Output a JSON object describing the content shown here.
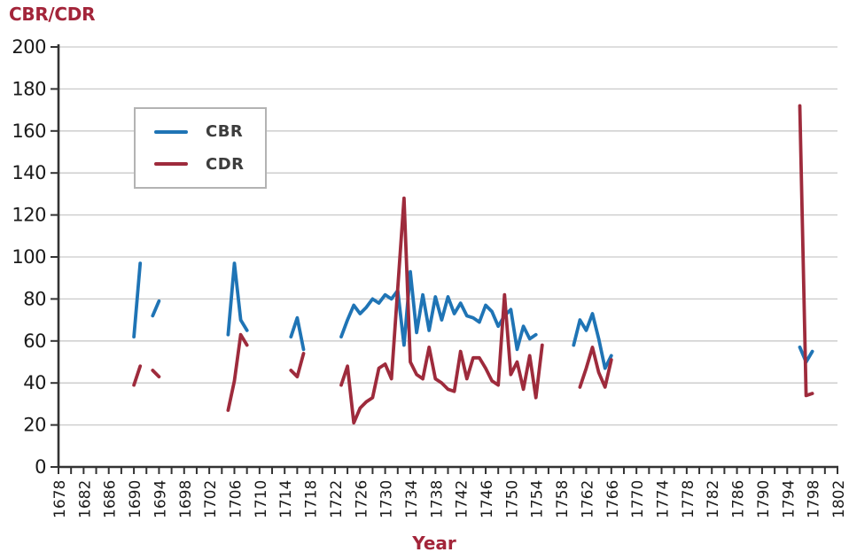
{
  "chart_data": {
    "type": "line",
    "title": "CBR/CDR",
    "xlabel": "Year",
    "grid": "horizontal-only",
    "legend_position": "upper-left-inside",
    "x_axis": {
      "min": 1678,
      "max": 1802,
      "tick_step": 2,
      "label_step": 4,
      "tick_labels": [
        1678,
        1682,
        1686,
        1690,
        1694,
        1698,
        1702,
        1706,
        1710,
        1714,
        1718,
        1722,
        1726,
        1730,
        1734,
        1738,
        1742,
        1746,
        1750,
        1754,
        1758,
        1762,
        1766,
        1770,
        1774,
        1778,
        1782,
        1786,
        1790,
        1794,
        1798,
        1802
      ]
    },
    "y_axis": {
      "min": 0,
      "max": 200,
      "tick_step": 20,
      "tick_labels": [
        0,
        20,
        40,
        60,
        80,
        100,
        120,
        140,
        160,
        180,
        200
      ]
    },
    "colors": {
      "cbr": "#1f74b5",
      "cdr": "#9e2b3c",
      "title_text": "#a3253a",
      "axis": "#333333",
      "grid": "#c9c9c9",
      "tick_text": "#1a1a1a",
      "legend_text": "#3d3d3d",
      "legend_border": "#b3b3b3"
    },
    "series": [
      {
        "name": "CBR",
        "color": "#1f74b5",
        "segments": [
          [
            [
              1690,
              62
            ],
            [
              1691,
              97
            ]
          ],
          [
            [
              1693,
              72
            ],
            [
              1694,
              79
            ]
          ],
          [
            [
              1705,
              63
            ],
            [
              1706,
              97
            ],
            [
              1707,
              70
            ],
            [
              1708,
              65
            ]
          ],
          [
            [
              1715,
              62
            ],
            [
              1716,
              71
            ],
            [
              1717,
              56
            ]
          ],
          [
            [
              1723,
              62
            ],
            [
              1724,
              70
            ],
            [
              1725,
              77
            ],
            [
              1726,
              73
            ],
            [
              1727,
              76
            ],
            [
              1728,
              80
            ],
            [
              1729,
              78
            ],
            [
              1730,
              82
            ],
            [
              1731,
              80
            ],
            [
              1732,
              84
            ],
            [
              1733,
              58
            ],
            [
              1734,
              93
            ],
            [
              1735,
              64
            ],
            [
              1736,
              82
            ],
            [
              1737,
              65
            ],
            [
              1738,
              81
            ],
            [
              1739,
              70
            ],
            [
              1740,
              81
            ],
            [
              1741,
              73
            ],
            [
              1742,
              78
            ],
            [
              1743,
              72
            ],
            [
              1744,
              71
            ],
            [
              1745,
              69
            ],
            [
              1746,
              77
            ],
            [
              1747,
              74
            ],
            [
              1748,
              67
            ],
            [
              1749,
              72
            ],
            [
              1750,
              75
            ],
            [
              1751,
              56
            ],
            [
              1752,
              67
            ],
            [
              1753,
              61
            ],
            [
              1754,
              63
            ]
          ],
          [
            [
              1760,
              58
            ],
            [
              1761,
              70
            ],
            [
              1762,
              65
            ],
            [
              1763,
              73
            ],
            [
              1764,
              61
            ],
            [
              1765,
              47
            ],
            [
              1766,
              53
            ]
          ],
          [
            [
              1796,
              57
            ],
            [
              1797,
              50
            ],
            [
              1798,
              55
            ]
          ]
        ]
      },
      {
        "name": "CDR",
        "color": "#9e2b3c",
        "segments": [
          [
            [
              1690,
              39
            ],
            [
              1691,
              48
            ]
          ],
          [
            [
              1693,
              46
            ],
            [
              1694,
              43
            ]
          ],
          [
            [
              1705,
              27
            ],
            [
              1706,
              41
            ],
            [
              1707,
              63
            ],
            [
              1708,
              58
            ]
          ],
          [
            [
              1715,
              46
            ],
            [
              1716,
              43
            ],
            [
              1717,
              54
            ]
          ],
          [
            [
              1723,
              39
            ],
            [
              1724,
              48
            ],
            [
              1725,
              21
            ],
            [
              1726,
              28
            ],
            [
              1727,
              31
            ],
            [
              1728,
              33
            ],
            [
              1729,
              47
            ],
            [
              1730,
              49
            ],
            [
              1731,
              42
            ],
            [
              1732,
              85
            ],
            [
              1733,
              128
            ],
            [
              1734,
              50
            ],
            [
              1735,
              44
            ],
            [
              1736,
              42
            ],
            [
              1737,
              57
            ],
            [
              1738,
              42
            ],
            [
              1739,
              40
            ],
            [
              1740,
              37
            ],
            [
              1741,
              36
            ],
            [
              1742,
              55
            ],
            [
              1743,
              42
            ],
            [
              1744,
              52
            ],
            [
              1745,
              52
            ],
            [
              1746,
              47
            ],
            [
              1747,
              41
            ],
            [
              1748,
              39
            ],
            [
              1749,
              82
            ],
            [
              1750,
              44
            ],
            [
              1751,
              50
            ],
            [
              1752,
              37
            ],
            [
              1753,
              53
            ],
            [
              1754,
              33
            ],
            [
              1755,
              58
            ]
          ],
          [
            [
              1761,
              38
            ],
            [
              1762,
              47
            ],
            [
              1763,
              57
            ],
            [
              1764,
              45
            ],
            [
              1765,
              38
            ],
            [
              1766,
              51
            ]
          ],
          [
            [
              1796,
              172
            ],
            [
              1797,
              34
            ],
            [
              1798,
              35
            ]
          ]
        ]
      }
    ]
  }
}
